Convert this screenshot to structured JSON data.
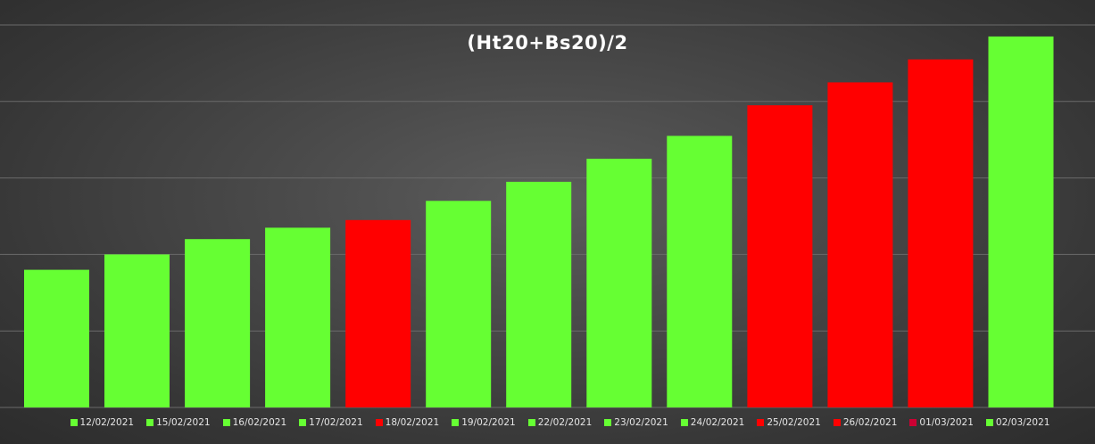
{
  "chart_data": {
    "type": "bar",
    "title": "(Ht20+Bs20)/2",
    "xlabel": "",
    "ylabel": "",
    "grid": true,
    "legend": "bottom",
    "ylim": [
      0,
      1
    ],
    "categories": [
      "12/02/2021",
      "15/02/2021",
      "16/02/2021",
      "17/02/2021",
      "18/02/2021",
      "19/02/2021",
      "22/02/2021",
      "23/02/2021",
      "24/02/2021",
      "25/02/2021",
      "26/02/2021",
      "01/03/2021",
      "02/03/2021"
    ],
    "series": [
      {
        "name": "",
        "values": [
          0.36,
          0.4,
          0.44,
          0.47,
          0.49,
          0.54,
          0.59,
          0.65,
          0.71,
          0.79,
          0.85,
          0.91,
          0.97
        ],
        "colors": [
          "#66ff33",
          "#66ff33",
          "#66ff33",
          "#66ff33",
          "#ff0000",
          "#66ff33",
          "#66ff33",
          "#66ff33",
          "#66ff33",
          "#ff0000",
          "#ff0000",
          "#ff0000",
          "#66ff33"
        ]
      }
    ],
    "legend_colors": [
      "#66ff33",
      "#66ff33",
      "#66ff33",
      "#66ff33",
      "#ff0000",
      "#66ff33",
      "#66ff33",
      "#66ff33",
      "#66ff33",
      "#ff0000",
      "#ff0000",
      "#cc0033",
      "#66ff33"
    ],
    "colors": {
      "up": "#66ff33",
      "down": "#ff0000",
      "gridline": "#6a6a6a",
      "background": "#4a4a4a"
    }
  }
}
